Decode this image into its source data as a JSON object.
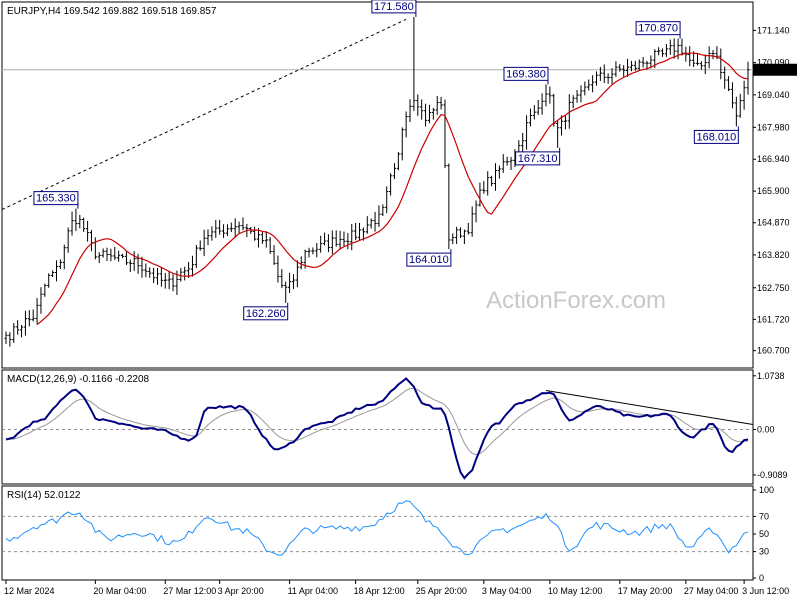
{
  "chart_data": [
    {
      "type": "candlestick",
      "panel": "price",
      "title": "EURJPY,H4  169.542 169.882 169.518 169.857",
      "ylim": [
        160.2,
        172.0
      ],
      "yticks": [
        160.7,
        161.72,
        162.75,
        163.82,
        164.87,
        165.9,
        166.94,
        167.98,
        169.04,
        170.09,
        171.14
      ],
      "ytick_labels": [
        "160.700",
        "161.720",
        "162.750",
        "163.820",
        "164.870",
        "165.900",
        "166.940",
        "167.980",
        "169.040",
        "170.090",
        "171.140"
      ],
      "last_price": 169.857,
      "last_price_label": "169.857",
      "ma_color": "#cc0000",
      "candle_color": "#000000",
      "watermark": "ActionForex.com",
      "key_points": [
        {
          "i": 18,
          "price": 165.33,
          "label": "165.330",
          "side": "above"
        },
        {
          "i": 72,
          "price": 162.26,
          "label": "162.260",
          "side": "below"
        },
        {
          "i": 105,
          "price": 171.58,
          "label": "171.580",
          "side": "above"
        },
        {
          "i": 114,
          "price": 164.01,
          "label": "164.010",
          "side": "below"
        },
        {
          "i": 139,
          "price": 169.38,
          "label": "169.380",
          "side": "above"
        },
        {
          "i": 142,
          "price": 167.31,
          "label": "167.310",
          "side": "below"
        },
        {
          "i": 173,
          "price": 170.87,
          "label": "170.870",
          "side": "above"
        },
        {
          "i": 188,
          "price": 168.01,
          "label": "168.010",
          "side": "below"
        }
      ],
      "trendline": {
        "from": {
          "i": 0,
          "price": 165.3
        },
        "to": {
          "i": 103,
          "price": 171.5
        },
        "style": "dotted"
      }
    },
    {
      "type": "line",
      "panel": "macd",
      "title": "MACD(12,26,9) -0.1166 -0.2208",
      "ylim": [
        -1.05,
        1.15
      ],
      "yticks": [
        1.0738,
        0.0,
        -0.9089
      ],
      "ytick_labels": [
        "1.0738",
        "0.00",
        "-0.9089"
      ],
      "key_points": [
        {
          "i": 0,
          "v": -0.2
        },
        {
          "i": 8,
          "v": 0.15
        },
        {
          "i": 18,
          "v": 0.8
        },
        {
          "i": 24,
          "v": 0.2
        },
        {
          "i": 38,
          "v": 0.0
        },
        {
          "i": 48,
          "v": -0.2
        },
        {
          "i": 52,
          "v": 0.45
        },
        {
          "i": 60,
          "v": 0.45
        },
        {
          "i": 70,
          "v": -0.4
        },
        {
          "i": 80,
          "v": 0.1
        },
        {
          "i": 95,
          "v": 0.5
        },
        {
          "i": 103,
          "v": 1.0
        },
        {
          "i": 108,
          "v": 0.5
        },
        {
          "i": 112,
          "v": 0.4
        },
        {
          "i": 118,
          "v": -0.95
        },
        {
          "i": 126,
          "v": 0.1
        },
        {
          "i": 132,
          "v": 0.55
        },
        {
          "i": 140,
          "v": 0.75
        },
        {
          "i": 145,
          "v": 0.2
        },
        {
          "i": 152,
          "v": 0.45
        },
        {
          "i": 162,
          "v": 0.25
        },
        {
          "i": 170,
          "v": 0.3
        },
        {
          "i": 176,
          "v": -0.15
        },
        {
          "i": 182,
          "v": 0.1
        },
        {
          "i": 186,
          "v": -0.45
        },
        {
          "i": 191,
          "v": -0.2
        }
      ],
      "signal_color": "#999999",
      "trendline": {
        "from": {
          "i": 139,
          "v": 0.78
        },
        "to": {
          "i": 194,
          "v": 0.1
        }
      }
    },
    {
      "type": "line",
      "panel": "rsi",
      "title": "RSI(14) 52.0122",
      "ylim": [
        0,
        100
      ],
      "yticks": [
        100,
        70,
        50,
        30,
        0
      ],
      "ytick_labels": [
        "100",
        "70",
        "50",
        "30",
        "0"
      ],
      "levels": [
        70,
        30
      ],
      "line_color": "#1e90ff",
      "key_points": [
        {
          "i": 0,
          "v": 45
        },
        {
          "i": 10,
          "v": 62
        },
        {
          "i": 18,
          "v": 76
        },
        {
          "i": 26,
          "v": 45
        },
        {
          "i": 34,
          "v": 52
        },
        {
          "i": 44,
          "v": 40
        },
        {
          "i": 52,
          "v": 70
        },
        {
          "i": 60,
          "v": 55
        },
        {
          "i": 70,
          "v": 28
        },
        {
          "i": 78,
          "v": 55
        },
        {
          "i": 92,
          "v": 58
        },
        {
          "i": 103,
          "v": 85
        },
        {
          "i": 110,
          "v": 60
        },
        {
          "i": 118,
          "v": 30
        },
        {
          "i": 128,
          "v": 55
        },
        {
          "i": 140,
          "v": 70
        },
        {
          "i": 145,
          "v": 35
        },
        {
          "i": 152,
          "v": 60
        },
        {
          "i": 162,
          "v": 52
        },
        {
          "i": 170,
          "v": 60
        },
        {
          "i": 176,
          "v": 35
        },
        {
          "i": 182,
          "v": 55
        },
        {
          "i": 186,
          "v": 32
        },
        {
          "i": 191,
          "v": 52
        }
      ]
    }
  ],
  "x_axis": {
    "bar_count": 192,
    "labels": [
      {
        "i": 0,
        "text": "12 Mar 2024"
      },
      {
        "i": 23,
        "text": "20 Mar 04:00"
      },
      {
        "i": 41,
        "text": "27 Mar 12:00"
      },
      {
        "i": 55,
        "text": "3 Apr 20:00"
      },
      {
        "i": 73,
        "text": "11 Apr 04:00"
      },
      {
        "i": 90,
        "text": "18 Apr 12:00"
      },
      {
        "i": 106,
        "text": "25 Apr 20:00"
      },
      {
        "i": 123,
        "text": "3 May 04:00"
      },
      {
        "i": 140,
        "text": "10 May 12:00"
      },
      {
        "i": 158,
        "text": "17 May 20:00"
      },
      {
        "i": 175,
        "text": "27 May 04:00"
      },
      {
        "i": 190,
        "text": "3 Jun 12:00"
      }
    ]
  }
}
